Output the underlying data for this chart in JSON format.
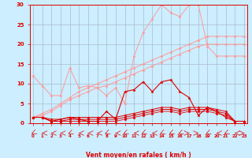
{
  "bg_color": "#cceeff",
  "grid_color": "#aabbcc",
  "light_pink": "#ff9999",
  "dark_red": "#dd0000",
  "xlabel": "Vent moyen/en rafales ( km/h )",
  "ylim": [
    0,
    30
  ],
  "xlim": [
    0,
    23
  ],
  "yticks": [
    0,
    5,
    10,
    15,
    20,
    25,
    30
  ],
  "x": [
    0,
    1,
    2,
    3,
    4,
    5,
    6,
    7,
    8,
    9,
    10,
    11,
    12,
    13,
    14,
    15,
    16,
    17,
    18,
    19,
    20,
    21,
    22,
    23
  ],
  "light_jagged": [
    12,
    9.5,
    7,
    7,
    14,
    9,
    9.5,
    9,
    7,
    9,
    5,
    17,
    23,
    26.5,
    30,
    28,
    27,
    30,
    30,
    19.5,
    17,
    17,
    17,
    17
  ],
  "light_smooth_upper": [
    1.5,
    2.5,
    3.5,
    5,
    6.5,
    8,
    9,
    10,
    11,
    12,
    13,
    14,
    15,
    16,
    17,
    18,
    19,
    20,
    21,
    22,
    22,
    22,
    22,
    22
  ],
  "light_smooth_lower": [
    1.5,
    2,
    3,
    4.5,
    6,
    7,
    8,
    9,
    9.5,
    10.5,
    11.5,
    12.5,
    13.5,
    14.5,
    15.5,
    16.5,
    17.5,
    18.5,
    19.5,
    20,
    20,
    20,
    20,
    20
  ],
  "dark_jagged": [
    1.5,
    1.5,
    0.5,
    1,
    1.5,
    1,
    0.5,
    0.5,
    3,
    1,
    8,
    8.5,
    10.5,
    8,
    10.5,
    11,
    8,
    6.5,
    2,
    4,
    3,
    1.5,
    0.5,
    0.5
  ],
  "dark_smooth1": [
    1.5,
    1.5,
    1,
    1,
    1.5,
    1.5,
    1.5,
    1.5,
    1.5,
    1.5,
    2,
    2.5,
    3,
    3.5,
    4,
    4,
    3.5,
    4,
    4,
    4,
    3.5,
    3,
    0.5,
    0.5
  ],
  "dark_smooth2": [
    1.5,
    1.5,
    0.5,
    0.5,
    1,
    1,
    1,
    1,
    1,
    1,
    1.5,
    2,
    2.5,
    3,
    3.5,
    3.5,
    3,
    3.5,
    3.5,
    3.5,
    3,
    2.5,
    0.5,
    0.5
  ],
  "dark_smooth3": [
    1.5,
    1.5,
    0.5,
    0.5,
    0.5,
    0.5,
    0.5,
    0.5,
    0.5,
    0.5,
    1,
    1.5,
    2,
    2.5,
    3,
    3,
    2.5,
    3,
    3,
    3,
    2.5,
    2,
    0.5,
    0.5
  ],
  "arrow_angles": [
    225,
    270,
    270,
    270,
    225,
    270,
    270,
    270,
    225,
    270,
    225,
    270,
    225,
    270,
    225,
    225,
    225,
    90,
    90,
    225,
    270,
    225,
    270,
    90
  ]
}
